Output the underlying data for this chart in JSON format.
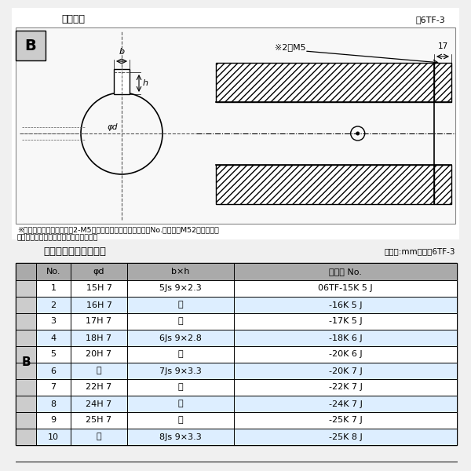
{
  "title_top": "軸穴形状",
  "figure_label": "図6TF-3",
  "note_line1": "※セットボルト用タップ（2-M5）が必要な場合は右記コードNo.の末尾にM52を付ける。",
  "note_line2": "（セットボルトは付属されています。）",
  "table_title": "軸穴形状コード一覧表",
  "table_unit": "（単位:mm）　表6TF-3",
  "col_headers": [
    "No.",
    "φd",
    "b×h",
    "コード No."
  ],
  "b_label": "B",
  "rows": [
    [
      "1",
      "15H 7",
      "5Js 9×2.3",
      "06TF-15K 5 J"
    ],
    [
      "2",
      "16H 7",
      "〃",
      "-16K 5 J"
    ],
    [
      "3",
      "17H 7",
      "〃",
      "-17K 5 J"
    ],
    [
      "4",
      "18H 7",
      "6Js 9×2.8",
      "-18K 6 J"
    ],
    [
      "5",
      "20H 7",
      "〃",
      "-20K 6 J"
    ],
    [
      "6",
      "〃",
      "7Js 9×3.3",
      "-20K 7 J"
    ],
    [
      "7",
      "22H 7",
      "〃",
      "-22K 7 J"
    ],
    [
      "8",
      "24H 7",
      "〃",
      "-24K 7 J"
    ],
    [
      "9",
      "25H 7",
      "〃",
      "-25K 7 J"
    ],
    [
      "10",
      "〃",
      "8Js 9×3.3",
      "-25K 8 J"
    ]
  ],
  "bg_color": "#f0f0f0",
  "table_row_light": "#ddeeff",
  "table_row_white": "#ffffff",
  "table_header_bg": "#aaaaaa",
  "table_b_col_bg": "#cccccc",
  "diagram_bg": "#ffffff",
  "diagram_box_bg": "#f8f8f8"
}
